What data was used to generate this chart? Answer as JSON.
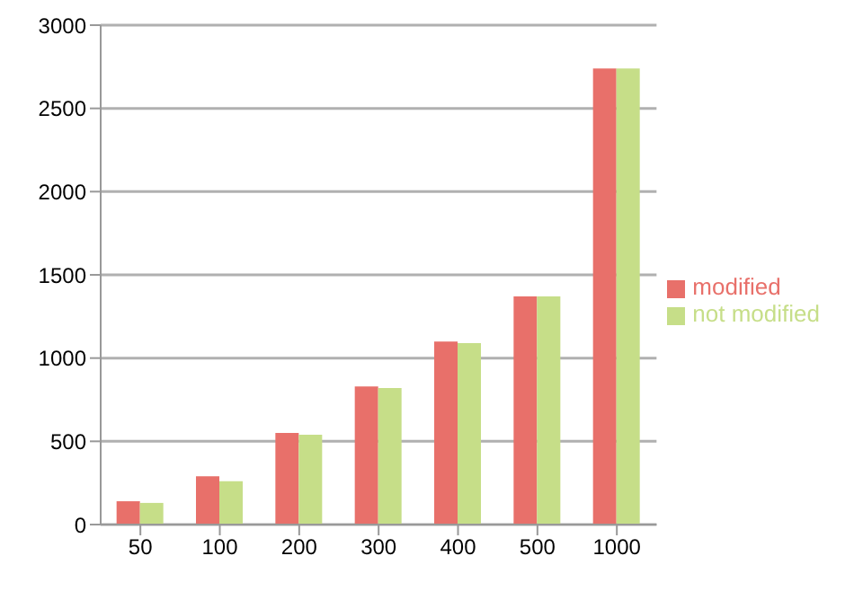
{
  "chart_data": {
    "type": "bar",
    "categories": [
      "50",
      "100",
      "200",
      "300",
      "400",
      "500",
      "1000"
    ],
    "series": [
      {
        "name": "modified",
        "color": "#e8706a",
        "values": [
          140,
          290,
          550,
          830,
          1100,
          1370,
          2740
        ]
      },
      {
        "name": "not modified",
        "color": "#c6de88",
        "values": [
          130,
          260,
          540,
          820,
          1090,
          1370,
          2740
        ]
      }
    ],
    "ylim": [
      0,
      3000
    ],
    "yticks": [
      0,
      500,
      1000,
      1500,
      2000,
      2500,
      3000
    ],
    "grid": "y",
    "legend": "right"
  }
}
